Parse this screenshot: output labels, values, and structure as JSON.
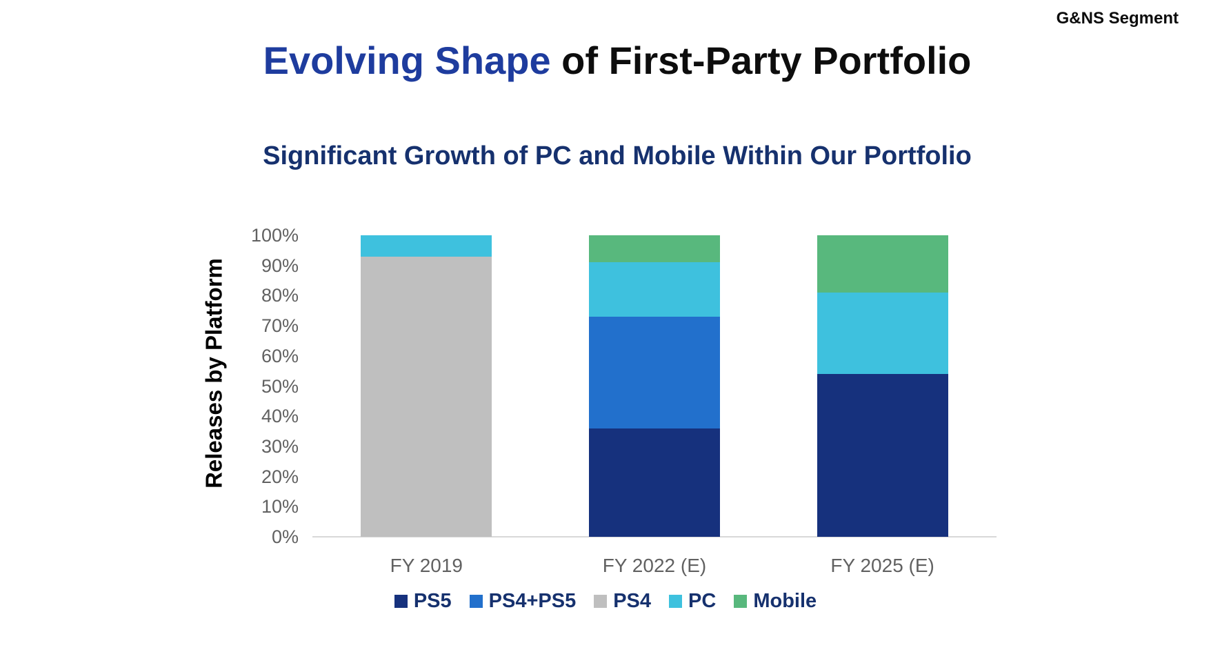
{
  "header": {
    "segment_label": "G&NS Segment",
    "title_accent": "Evolving Shape",
    "title_rest": " of First-Party Portfolio",
    "subtitle": "Significant Growth of PC and Mobile Within Our Portfolio"
  },
  "colors": {
    "title_accent": "#1E3C9E",
    "title_text": "#0d0d0d",
    "subtitle": "#16316E",
    "legend_text": "#16316E",
    "axis_label": "#000000",
    "tick_label": "#616161",
    "axis_line": "#D8D8D8"
  },
  "chart_data": {
    "type": "bar",
    "stacked": true,
    "title": "",
    "xlabel": "",
    "ylabel": "Releases by Platform",
    "categories": [
      "FY 2019",
      "FY 2022 (E)",
      "FY 2025 (E)"
    ],
    "series": [
      {
        "name": "PS5",
        "color": "#16317D",
        "values": [
          0,
          36,
          54
        ]
      },
      {
        "name": "PS4+PS5",
        "color": "#2270CC",
        "values": [
          0,
          37,
          0
        ]
      },
      {
        "name": "PS4",
        "color": "#BFBFBF",
        "values": [
          93,
          0,
          0
        ]
      },
      {
        "name": "PC",
        "color": "#3EC1DE",
        "values": [
          7,
          18,
          27
        ]
      },
      {
        "name": "Mobile",
        "color": "#58B87D",
        "values": [
          0,
          9,
          19
        ]
      }
    ],
    "ylim": [
      0,
      100
    ],
    "ytick_labels": [
      "0%",
      "10%",
      "20%",
      "30%",
      "40%",
      "50%",
      "60%",
      "70%",
      "80%",
      "90%",
      "100%"
    ],
    "grid": false,
    "legend_position": "bottom"
  }
}
